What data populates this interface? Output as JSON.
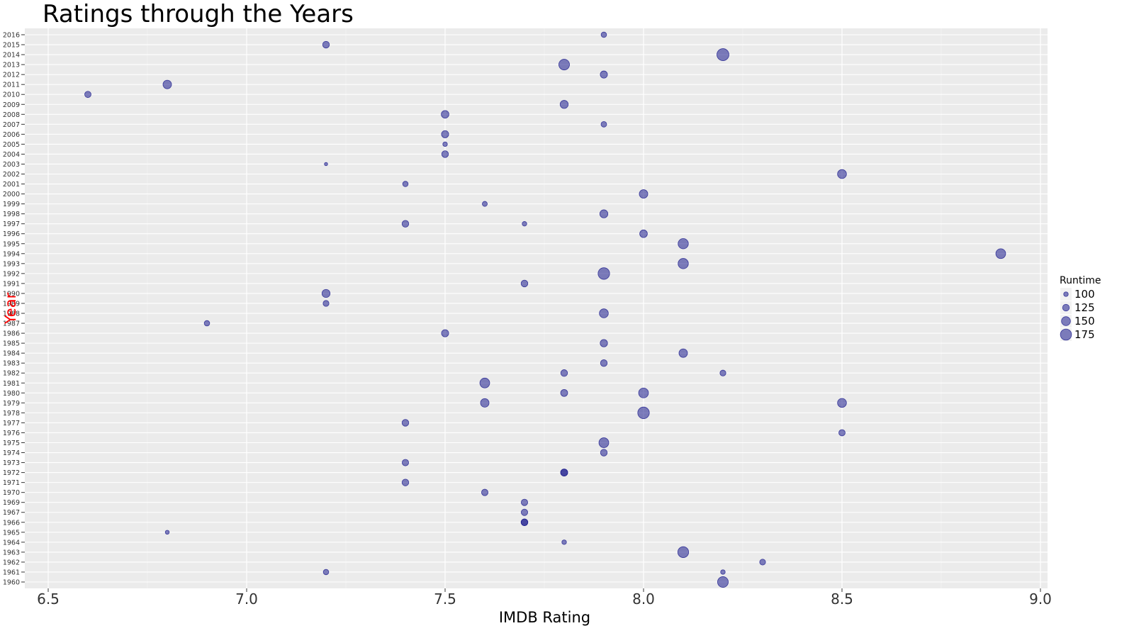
{
  "chart_data": {
    "type": "scatter",
    "title": "Ratings through the Years",
    "xlabel": "IMDB Rating",
    "ylabel": "Year",
    "xlim": [
      6.5,
      9.0
    ],
    "xticks": [
      "6.5",
      "7.0",
      "7.5",
      "8.0",
      "8.5",
      "9.0"
    ],
    "years": [
      1960,
      1961,
      1962,
      1963,
      1964,
      1965,
      1966,
      1967,
      1969,
      1970,
      1971,
      1972,
      1973,
      1974,
      1975,
      1976,
      1977,
      1978,
      1979,
      1980,
      1981,
      1982,
      1983,
      1984,
      1985,
      1986,
      1987,
      1988,
      1989,
      1990,
      1991,
      1992,
      1993,
      1994,
      1995,
      1996,
      1997,
      1998,
      1999,
      2000,
      2001,
      2002,
      2003,
      2004,
      2005,
      2006,
      2007,
      2008,
      2009,
      2010,
      2011,
      2012,
      2013,
      2014,
      2015,
      2016
    ],
    "size_legend": {
      "title": "Runtime",
      "breaks": [
        100,
        125,
        150,
        175
      ]
    },
    "grid": true,
    "point_color": "#1a1a8c",
    "panel_color": "#ebebeb",
    "points": [
      {
        "year": 1960,
        "rating": 8.2,
        "runtime": 170
      },
      {
        "year": 1961,
        "rating": 7.2,
        "runtime": 110
      },
      {
        "year": 1961,
        "rating": 8.2,
        "runtime": 100
      },
      {
        "year": 1962,
        "rating": 8.3,
        "runtime": 115
      },
      {
        "year": 1963,
        "rating": 8.1,
        "runtime": 172
      },
      {
        "year": 1964,
        "rating": 7.8,
        "runtime": 100
      },
      {
        "year": 1965,
        "rating": 6.8,
        "runtime": 93
      },
      {
        "year": 1966,
        "rating": 7.7,
        "runtime": 125
      },
      {
        "year": 1966,
        "rating": 7.7,
        "runtime": 125
      },
      {
        "year": 1967,
        "rating": 7.7,
        "runtime": 122
      },
      {
        "year": 1969,
        "rating": 7.7,
        "runtime": 122
      },
      {
        "year": 1970,
        "rating": 7.6,
        "runtime": 122
      },
      {
        "year": 1971,
        "rating": 7.4,
        "runtime": 125
      },
      {
        "year": 1972,
        "rating": 7.8,
        "runtime": 128
      },
      {
        "year": 1972,
        "rating": 7.8,
        "runtime": 128
      },
      {
        "year": 1973,
        "rating": 7.4,
        "runtime": 122
      },
      {
        "year": 1974,
        "rating": 7.9,
        "runtime": 125
      },
      {
        "year": 1975,
        "rating": 7.9,
        "runtime": 160
      },
      {
        "year": 1976,
        "rating": 8.5,
        "runtime": 120
      },
      {
        "year": 1977,
        "rating": 7.4,
        "runtime": 125
      },
      {
        "year": 1978,
        "rating": 8.0,
        "runtime": 180
      },
      {
        "year": 1979,
        "rating": 7.6,
        "runtime": 145
      },
      {
        "year": 1979,
        "rating": 8.5,
        "runtime": 150
      },
      {
        "year": 1980,
        "rating": 7.8,
        "runtime": 128
      },
      {
        "year": 1980,
        "rating": 8.0,
        "runtime": 160
      },
      {
        "year": 1981,
        "rating": 7.6,
        "runtime": 160
      },
      {
        "year": 1982,
        "rating": 7.8,
        "runtime": 125
      },
      {
        "year": 1982,
        "rating": 8.2,
        "runtime": 115
      },
      {
        "year": 1983,
        "rating": 7.9,
        "runtime": 125
      },
      {
        "year": 1984,
        "rating": 8.1,
        "runtime": 145
      },
      {
        "year": 1985,
        "rating": 7.9,
        "runtime": 132
      },
      {
        "year": 1986,
        "rating": 7.5,
        "runtime": 130
      },
      {
        "year": 1987,
        "rating": 6.9,
        "runtime": 110
      },
      {
        "year": 1988,
        "rating": 7.9,
        "runtime": 150
      },
      {
        "year": 1989,
        "rating": 7.2,
        "runtime": 115
      },
      {
        "year": 1990,
        "rating": 7.2,
        "runtime": 140
      },
      {
        "year": 1991,
        "rating": 7.7,
        "runtime": 125
      },
      {
        "year": 1992,
        "rating": 7.9,
        "runtime": 180
      },
      {
        "year": 1993,
        "rating": 8.1,
        "runtime": 165
      },
      {
        "year": 1994,
        "rating": 8.9,
        "runtime": 160
      },
      {
        "year": 1995,
        "rating": 8.1,
        "runtime": 165
      },
      {
        "year": 1996,
        "rating": 8.0,
        "runtime": 135
      },
      {
        "year": 1997,
        "rating": 7.4,
        "runtime": 125
      },
      {
        "year": 1997,
        "rating": 7.7,
        "runtime": 100
      },
      {
        "year": 1998,
        "rating": 7.9,
        "runtime": 140
      },
      {
        "year": 1999,
        "rating": 7.6,
        "runtime": 105
      },
      {
        "year": 2000,
        "rating": 8.0,
        "runtime": 145
      },
      {
        "year": 2001,
        "rating": 7.4,
        "runtime": 110
      },
      {
        "year": 2002,
        "rating": 8.5,
        "runtime": 150
      },
      {
        "year": 2003,
        "rating": 7.2,
        "runtime": 85
      },
      {
        "year": 2004,
        "rating": 7.5,
        "runtime": 125
      },
      {
        "year": 2005,
        "rating": 7.5,
        "runtime": 100
      },
      {
        "year": 2006,
        "rating": 7.5,
        "runtime": 130
      },
      {
        "year": 2007,
        "rating": 7.9,
        "runtime": 112
      },
      {
        "year": 2008,
        "rating": 7.5,
        "runtime": 135
      },
      {
        "year": 2009,
        "rating": 7.8,
        "runtime": 140
      },
      {
        "year": 2010,
        "rating": 6.6,
        "runtime": 120
      },
      {
        "year": 2011,
        "rating": 6.8,
        "runtime": 145
      },
      {
        "year": 2012,
        "rating": 7.9,
        "runtime": 130
      },
      {
        "year": 2013,
        "rating": 7.8,
        "runtime": 170
      },
      {
        "year": 2014,
        "rating": 8.2,
        "runtime": 185
      },
      {
        "year": 2015,
        "rating": 7.2,
        "runtime": 125
      },
      {
        "year": 2016,
        "rating": 7.9,
        "runtime": 110
      }
    ]
  }
}
